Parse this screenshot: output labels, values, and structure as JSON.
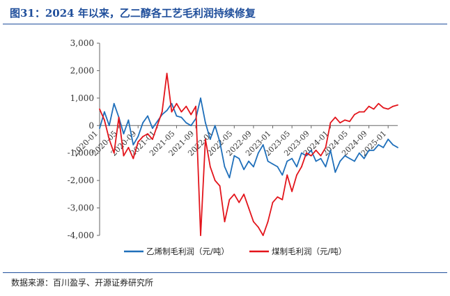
{
  "title": "图31：2024 年以来，乙二醇各工艺毛利润持续修复",
  "source": "数据来源：百川盈孚、开源证券研究所",
  "colors": {
    "title": "#1f4e9b",
    "series1": "#1f6fba",
    "series2": "#e3141b"
  },
  "chart_data": {
    "type": "line",
    "xlabel": "",
    "ylabel": "",
    "ylim": [
      -4000,
      3000
    ],
    "yticks": [
      -4000,
      -3000,
      -2000,
      -1000,
      0,
      1000,
      2000,
      3000
    ],
    "ytick_labels": [
      "-4,000",
      "-3,000",
      "-2,000",
      "-1,000",
      "0",
      "1,000",
      "2,000",
      "3,000"
    ],
    "xlim": [
      "2020-01",
      "2025-03"
    ],
    "xtick_labels": [
      "2020-01",
      "2020-05",
      "2020-09",
      "2021-01",
      "2021-05",
      "2021-09",
      "2022-01",
      "2022-05",
      "2022-09",
      "2023-01",
      "2023-05",
      "2023-09",
      "2024-01",
      "2024-05",
      "2024-09",
      "2025-01"
    ],
    "grid": false,
    "legend": "bottom",
    "series": [
      {
        "name": "乙烯制毛利润（元/吨）",
        "color": "#1f6fba",
        "x": [
          "2020-01",
          "2020-02",
          "2020-03",
          "2020-04",
          "2020-05",
          "2020-06",
          "2020-07",
          "2020-08",
          "2020-09",
          "2020-10",
          "2020-11",
          "2020-12",
          "2021-01",
          "2021-02",
          "2021-03",
          "2021-04",
          "2021-05",
          "2021-06",
          "2021-07",
          "2021-08",
          "2021-09",
          "2021-10",
          "2021-11",
          "2021-12",
          "2022-01",
          "2022-02",
          "2022-03",
          "2022-04",
          "2022-05",
          "2022-06",
          "2022-07",
          "2022-08",
          "2022-09",
          "2022-10",
          "2022-11",
          "2022-12",
          "2023-01",
          "2023-02",
          "2023-03",
          "2023-04",
          "2023-05",
          "2023-06",
          "2023-07",
          "2023-08",
          "2023-09",
          "2023-10",
          "2023-11",
          "2023-12",
          "2024-01",
          "2024-02",
          "2024-03",
          "2024-04",
          "2024-05",
          "2024-06",
          "2024-07",
          "2024-08",
          "2024-09",
          "2024-10",
          "2024-11",
          "2024-12",
          "2025-01",
          "2025-02",
          "2025-03"
        ],
        "values": [
          -100,
          500,
          0,
          800,
          300,
          -300,
          200,
          -700,
          -400,
          100,
          350,
          -100,
          150,
          400,
          550,
          800,
          350,
          300,
          100,
          0,
          250,
          1000,
          100,
          -500,
          0,
          -600,
          -1500,
          -1900,
          -1100,
          -1200,
          -1600,
          -1300,
          -1500,
          -1000,
          -700,
          -1300,
          -1400,
          -1500,
          -1800,
          -1300,
          -1200,
          -1500,
          -1000,
          -1100,
          -900,
          -1300,
          -1200,
          -1500,
          -900,
          -1700,
          -1300,
          -1100,
          -1200,
          -1300,
          -1000,
          -1200,
          -900,
          -900,
          -700,
          -800,
          -500,
          -700,
          -800
        ]
      },
      {
        "name": "煤制毛利润（元/吨）",
        "color": "#e3141b",
        "x": [
          "2020-01",
          "2020-02",
          "2020-03",
          "2020-04",
          "2020-05",
          "2020-06",
          "2020-07",
          "2020-08",
          "2020-09",
          "2020-10",
          "2020-11",
          "2020-12",
          "2021-01",
          "2021-02",
          "2021-03",
          "2021-04",
          "2021-05",
          "2021-06",
          "2021-07",
          "2021-08",
          "2021-09",
          "2021-10",
          "2021-11",
          "2021-12",
          "2022-01",
          "2022-02",
          "2022-03",
          "2022-04",
          "2022-05",
          "2022-06",
          "2022-07",
          "2022-08",
          "2022-09",
          "2022-10",
          "2022-11",
          "2022-12",
          "2023-01",
          "2023-02",
          "2023-03",
          "2023-04",
          "2023-05",
          "2023-06",
          "2023-07",
          "2023-08",
          "2023-09",
          "2023-10",
          "2023-11",
          "2023-12",
          "2024-01",
          "2024-02",
          "2024-03",
          "2024-04",
          "2024-05",
          "2024-06",
          "2024-07",
          "2024-08",
          "2024-09",
          "2024-10",
          "2024-11",
          "2024-12",
          "2025-01",
          "2025-02",
          "2025-03"
        ],
        "values": [
          600,
          200,
          -500,
          -1000,
          300,
          -1100,
          -800,
          -1200,
          -600,
          -400,
          -300,
          -500,
          0,
          500,
          1900,
          500,
          800,
          500,
          700,
          400,
          700,
          -4000,
          -500,
          -1500,
          -2000,
          -2200,
          -3500,
          -2700,
          -2500,
          -2800,
          -2500,
          -3000,
          -3500,
          -3700,
          -4000,
          -3500,
          -2800,
          -2600,
          -2700,
          -1800,
          -2400,
          -1800,
          -1500,
          -1000,
          -1100,
          -900,
          -1100,
          -800,
          100,
          300,
          100,
          200,
          150,
          400,
          500,
          500,
          700,
          600,
          800,
          650,
          600,
          700,
          750
        ]
      }
    ]
  }
}
